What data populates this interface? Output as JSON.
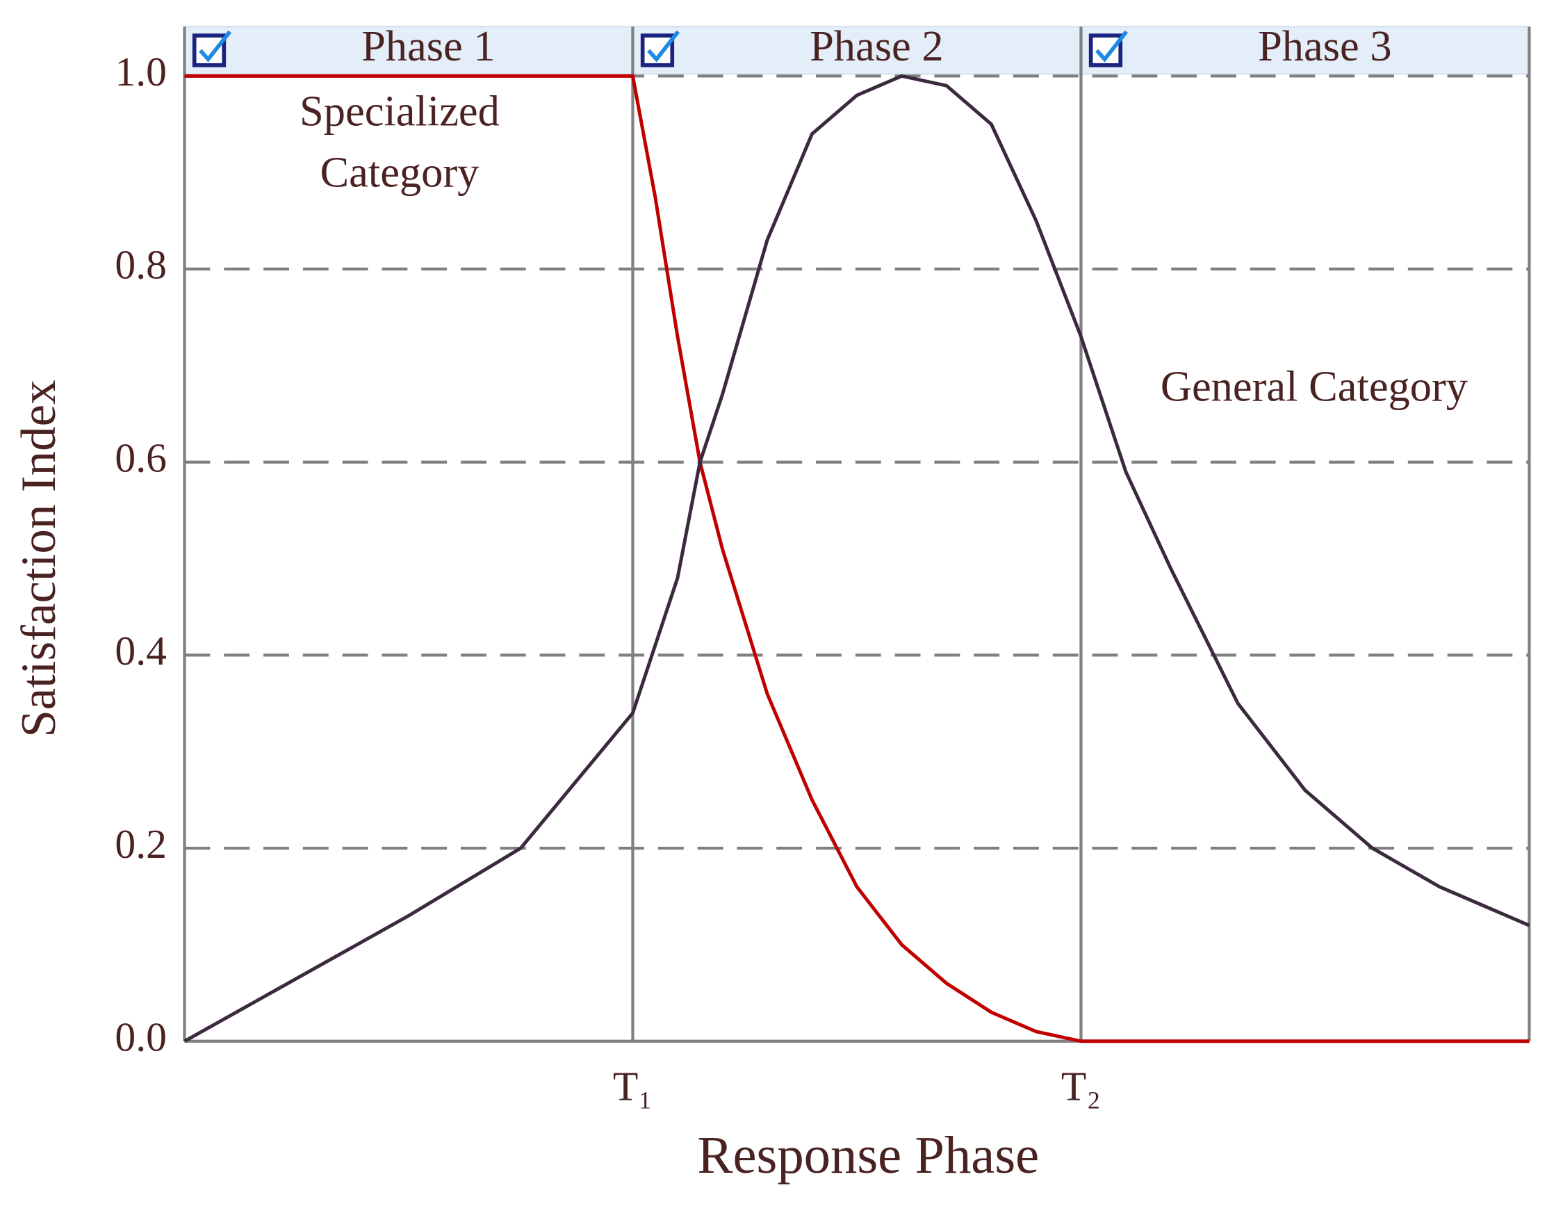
{
  "chart_data": {
    "type": "line",
    "y_label": "Satisfaction Index",
    "x_label": "Response Phase",
    "phases": [
      "Phase 1",
      "Phase 2",
      "Phase 3"
    ],
    "annotations": [
      [
        "Specialized",
        "Category"
      ],
      [
        "General Category"
      ]
    ],
    "xlim": [
      0,
      3
    ],
    "xticks": [
      {
        "value": 1,
        "label": "T₁"
      },
      {
        "value": 2,
        "label": "T₂"
      }
    ],
    "ylim": [
      0,
      1
    ],
    "yticks": [
      {
        "value": 0,
        "label": "0.0"
      },
      {
        "value": 0.2,
        "label": "0.2"
      },
      {
        "value": 0.4,
        "label": "0.4"
      },
      {
        "value": 0.6,
        "label": "0.6"
      },
      {
        "value": 0.8,
        "label": "0.8"
      },
      {
        "value": 1,
        "label": "1.0"
      }
    ],
    "grid": true,
    "series": [
      {
        "color": "#c00000",
        "x": [
          0,
          1,
          1.05,
          1.1,
          1.15,
          1.2,
          1.3,
          1.4,
          1.5,
          1.6,
          1.7,
          1.8,
          1.9,
          2,
          3
        ],
        "values": [
          1,
          1,
          0.875,
          0.73,
          0.6,
          0.51,
          0.36,
          0.25,
          0.16,
          0.1,
          0.06,
          0.03,
          0.01,
          0,
          0
        ]
      },
      {
        "color": "#3b2a3d",
        "x": [
          0,
          0.5,
          0.75,
          1,
          1.1,
          1.15,
          1.2,
          1.3,
          1.4,
          1.5,
          1.6,
          1.7,
          1.8,
          1.9,
          2,
          2.1,
          2.2,
          2.35,
          2.5,
          2.65,
          2.8,
          3
        ],
        "values": [
          0,
          0.13,
          0.2,
          0.34,
          0.48,
          0.6,
          0.67,
          0.83,
          0.94,
          0.98,
          1,
          0.99,
          0.95,
          0.85,
          0.73,
          0.59,
          0.49,
          0.35,
          0.26,
          0.2,
          0.16,
          0.12
        ]
      }
    ]
  }
}
